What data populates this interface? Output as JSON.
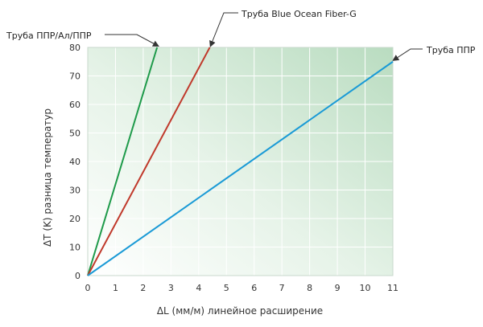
{
  "chart_data": {
    "type": "line",
    "title": "",
    "xlabel": "ΔL (мм/м) линейное расширение",
    "ylabel": "ΔT (K) разница температур",
    "xlim": [
      0,
      11
    ],
    "ylim": [
      0,
      80
    ],
    "x_ticks": [
      "0",
      "1",
      "2",
      "3",
      "4",
      "5",
      "6",
      "7",
      "8",
      "9",
      "10",
      "11"
    ],
    "y_ticks": [
      "0",
      "10",
      "20",
      "30",
      "40",
      "50",
      "60",
      "70",
      "80"
    ],
    "grid": true,
    "series": [
      {
        "name": "Труба ППР/Ал/ППР",
        "color": "#1e9a4a",
        "x": [
          0,
          2.5
        ],
        "y": [
          0,
          80
        ]
      },
      {
        "name": "Труба Blue Ocean Fiber-G",
        "color": "#c0392b",
        "x": [
          0,
          4.4
        ],
        "y": [
          0,
          80
        ]
      },
      {
        "name": "Труба ППР",
        "color": "#1a9ad6",
        "x": [
          0,
          11
        ],
        "y": [
          0,
          75
        ]
      }
    ]
  }
}
